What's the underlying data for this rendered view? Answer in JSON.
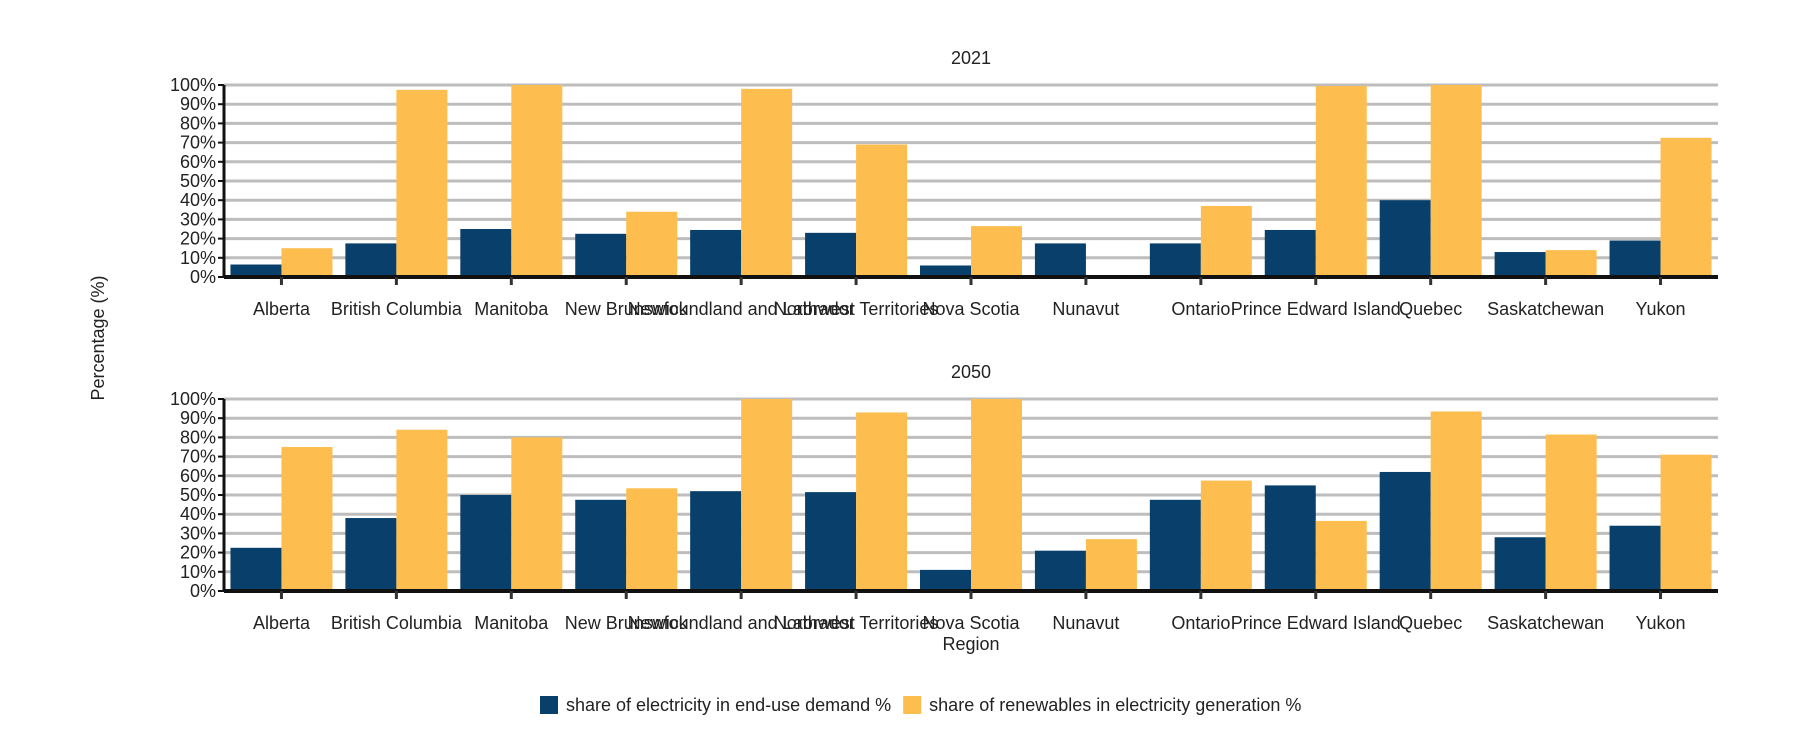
{
  "chart_data": {
    "type": "bar",
    "ylabel": "Percentage (%)",
    "xlabel": "Region",
    "ylim": [
      0,
      100
    ],
    "yticks": [
      "0%",
      "10%",
      "20%",
      "30%",
      "40%",
      "50%",
      "60%",
      "70%",
      "80%",
      "90%",
      "100%"
    ],
    "grid": true,
    "legend_position": "bottom",
    "categories": [
      "Alberta",
      "British Columbia",
      "Manitoba",
      "New Brunswick",
      "Newfoundland and Labrador",
      "Northwest Territories",
      "Nova Scotia",
      "Nunavut",
      "Ontario",
      "Prince Edward Island",
      "Quebec",
      "Saskatchewan",
      "Yukon"
    ],
    "series_names": [
      "share of electricity in end-use demand %",
      "share of renewables in electricity generation %"
    ],
    "colors": [
      "#08406b",
      "#fdbe4f"
    ],
    "panels": [
      {
        "title": "2021",
        "series": [
          {
            "name": "share of electricity in end-use demand %",
            "values": [
              6.5,
              17.5,
              25,
              22.5,
              24.5,
              23,
              6,
              17.5,
              17.5,
              24.5,
              40,
              13,
              19
            ]
          },
          {
            "name": "share of renewables in electricity generation %",
            "values": [
              15,
              97.5,
              100,
              34,
              98,
              69,
              26.5,
              0,
              37,
              99.5,
              100,
              14,
              72.5
            ]
          }
        ]
      },
      {
        "title": "2050",
        "series": [
          {
            "name": "share of electricity in end-use demand %",
            "values": [
              22.5,
              38,
              50,
              47.5,
              52,
              51.5,
              11,
              21,
              47.5,
              55,
              62,
              28,
              34
            ]
          },
          {
            "name": "share of renewables in electricity generation %",
            "values": [
              75,
              84,
              80,
              53.5,
              100,
              93,
              100,
              27,
              57.5,
              36.5,
              93.5,
              81.5,
              71
            ]
          }
        ]
      }
    ]
  }
}
